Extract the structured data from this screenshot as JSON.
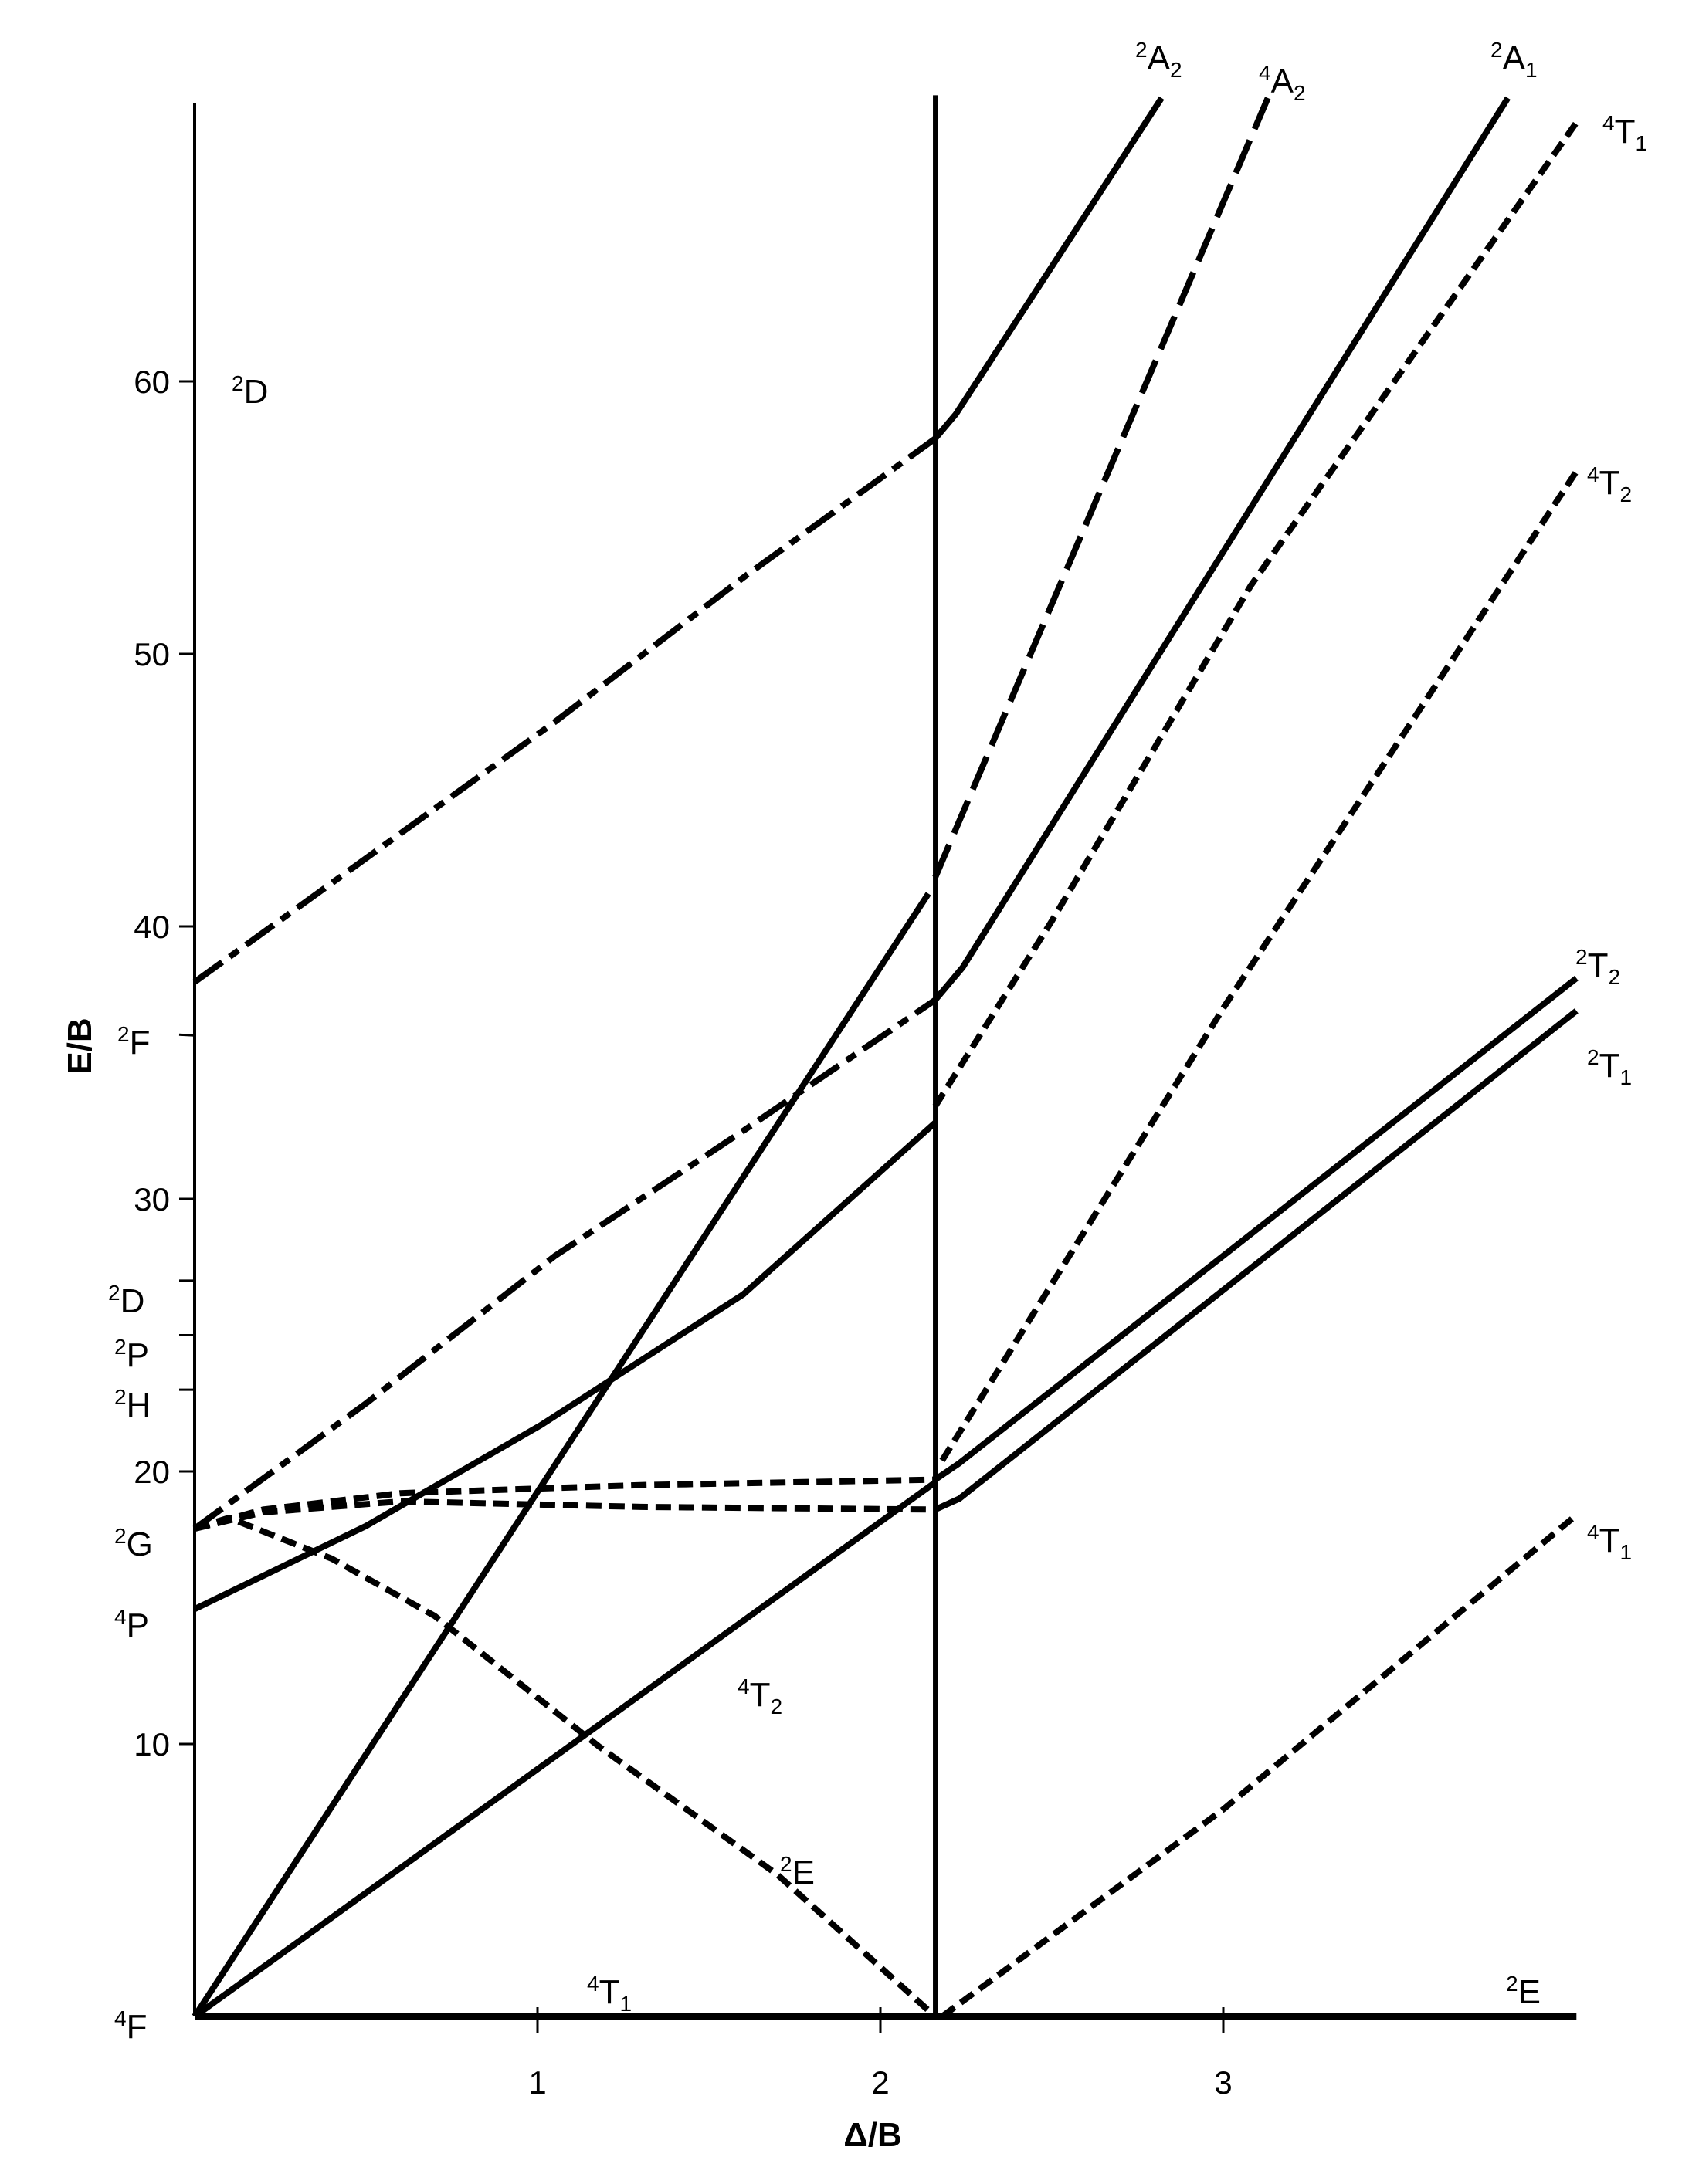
{
  "chart_data": {
    "type": "line",
    "title": "",
    "xlabel": "Δ/B",
    "ylabel": "E/B",
    "xlim": [
      0,
      4.03
    ],
    "ylim": [
      0,
      70.5
    ],
    "grid": false,
    "x_ticks": [
      "1",
      "2",
      "3"
    ],
    "x_tick_values": [
      1,
      2,
      3
    ],
    "y_ticks": [
      "10",
      "20",
      "30",
      "40",
      "50",
      "60"
    ],
    "y_tick_values": [
      10,
      20,
      30,
      40,
      50,
      60
    ],
    "crossover": 2.16,
    "free_ion_terms": [
      {
        "sup": "4",
        "main": "F",
        "energy": 0
      },
      {
        "sup": "4",
        "main": "P",
        "energy": 15
      },
      {
        "sup": "2",
        "main": "G",
        "energy": 17.9
      },
      {
        "sup": "2",
        "main": "H",
        "energy": 23
      },
      {
        "sup": "2",
        "main": "P",
        "energy": 25
      },
      {
        "sup": "2",
        "main": "D",
        "energy": 27
      },
      {
        "sup": "2",
        "main": "F",
        "energy": 36
      },
      {
        "sup": "2",
        "main": "D",
        "energy": 60
      }
    ],
    "state_labels": {
      "a2_top": {
        "sup": "2",
        "main": "A",
        "sub": "2"
      },
      "a2_quartet": {
        "sup": "4",
        "main": "A",
        "sub": "2"
      },
      "a1_top": {
        "sup": "2",
        "main": "A",
        "sub": "1"
      },
      "t1_top": {
        "sup": "4",
        "main": "T",
        "sub": "1"
      },
      "t2_quartet": {
        "sup": "4",
        "main": "T",
        "sub": "2"
      },
      "t2_doublet": {
        "sup": "2",
        "main": "T",
        "sub": "2"
      },
      "t1_doublet": {
        "sup": "2",
        "main": "T",
        "sub": "1"
      },
      "t1_low": {
        "sup": "4",
        "main": "T",
        "sub": "1"
      },
      "e_ground": {
        "sup": "2",
        "main": "E",
        "sub": ""
      },
      "t1_ground": {
        "sup": "4",
        "main": "T",
        "sub": "1"
      },
      "t2_left": {
        "sup": "4",
        "main": "T",
        "sub": "2"
      },
      "e_left": {
        "sup": "2",
        "main": "E",
        "sub": ""
      }
    },
    "series": [
      {
        "name": "2A2 weak field",
        "style": "dashdot",
        "points": [
          [
            0,
            37.96
          ],
          [
            0.5,
            42.5
          ],
          [
            1.05,
            47.5
          ],
          [
            1.6,
            52.8
          ],
          [
            2.16,
            57.9
          ]
        ]
      },
      {
        "name": "2A2",
        "style": "solid",
        "points": [
          [
            2.16,
            57.9
          ],
          [
            2.22,
            58.8
          ],
          [
            2.82,
            70.4
          ]
        ]
      },
      {
        "name": "4A2 weak field",
        "style": "solid",
        "points": [
          [
            0,
            0
          ],
          [
            2.14,
            41.2
          ]
        ]
      },
      {
        "name": "4A2",
        "style": "long",
        "points": [
          [
            2.16,
            41.8
          ],
          [
            3.13,
            70.4
          ]
        ]
      },
      {
        "name": "4T1(P) weak field",
        "style": "solid",
        "points": [
          [
            0,
            14.95
          ],
          [
            0.5,
            18.0
          ],
          [
            1.01,
            21.7
          ],
          [
            1.6,
            26.5
          ],
          [
            2.16,
            32.8
          ]
        ]
      },
      {
        "name": "4T1 strong field",
        "style": "short",
        "points": [
          [
            2.16,
            33.4
          ],
          [
            2.5,
            40.2
          ],
          [
            3.08,
            52.5
          ],
          [
            4.03,
            69.5
          ]
        ]
      },
      {
        "name": "2A1 weak field",
        "style": "dashdot",
        "points": [
          [
            0,
            17.9
          ],
          [
            0.5,
            22.5
          ],
          [
            1.05,
            27.9
          ],
          [
            1.6,
            32.5
          ],
          [
            2.16,
            37.3
          ]
        ]
      },
      {
        "name": "2A1",
        "style": "solid",
        "points": [
          [
            2.16,
            37.3
          ],
          [
            2.24,
            38.5
          ],
          [
            3.83,
            70.4
          ]
        ]
      },
      {
        "name": "2T2 weak field",
        "style": "short",
        "points": [
          [
            0,
            17.9
          ],
          [
            0.2,
            18.6
          ],
          [
            0.6,
            19.2
          ],
          [
            1.3,
            19.5
          ],
          [
            2.16,
            19.7
          ]
        ]
      },
      {
        "name": "2T1 weak field",
        "style": "short",
        "points": [
          [
            0,
            17.9
          ],
          [
            0.2,
            18.5
          ],
          [
            0.6,
            18.9
          ],
          [
            1.3,
            18.7
          ],
          [
            2.16,
            18.6
          ]
        ]
      },
      {
        "name": "2T2",
        "style": "solid",
        "points": [
          [
            2.16,
            19.7
          ],
          [
            2.23,
            20.3
          ],
          [
            4.03,
            38.1
          ]
        ]
      },
      {
        "name": "2T1",
        "style": "solid",
        "points": [
          [
            2.16,
            18.6
          ],
          [
            2.23,
            19.0
          ],
          [
            4.03,
            36.9
          ]
        ]
      },
      {
        "name": "2E weak field",
        "style": "short",
        "points": [
          [
            0,
            17.9
          ],
          [
            0.1,
            18.3
          ],
          [
            0.4,
            16.8
          ],
          [
            0.7,
            14.7
          ],
          [
            1.18,
            9.9
          ],
          [
            1.7,
            5.2
          ],
          [
            2.16,
            0
          ]
        ]
      },
      {
        "name": "4T2 weak field",
        "style": "solid",
        "points": [
          [
            0,
            0
          ],
          [
            2.16,
            19.6
          ]
        ]
      },
      {
        "name": "4T2 strong field",
        "style": "short",
        "points": [
          [
            2.18,
            20.4
          ],
          [
            3.0,
            37.0
          ],
          [
            4.03,
            56.7
          ]
        ]
      },
      {
        "name": "4T1 strong field low",
        "style": "short",
        "points": [
          [
            2.18,
            0
          ],
          [
            3.0,
            7.6
          ],
          [
            4.03,
            18.4
          ]
        ]
      },
      {
        "name": "ground state",
        "style": "solid",
        "points": [
          [
            0,
            0
          ],
          [
            4.03,
            0
          ]
        ]
      }
    ]
  }
}
